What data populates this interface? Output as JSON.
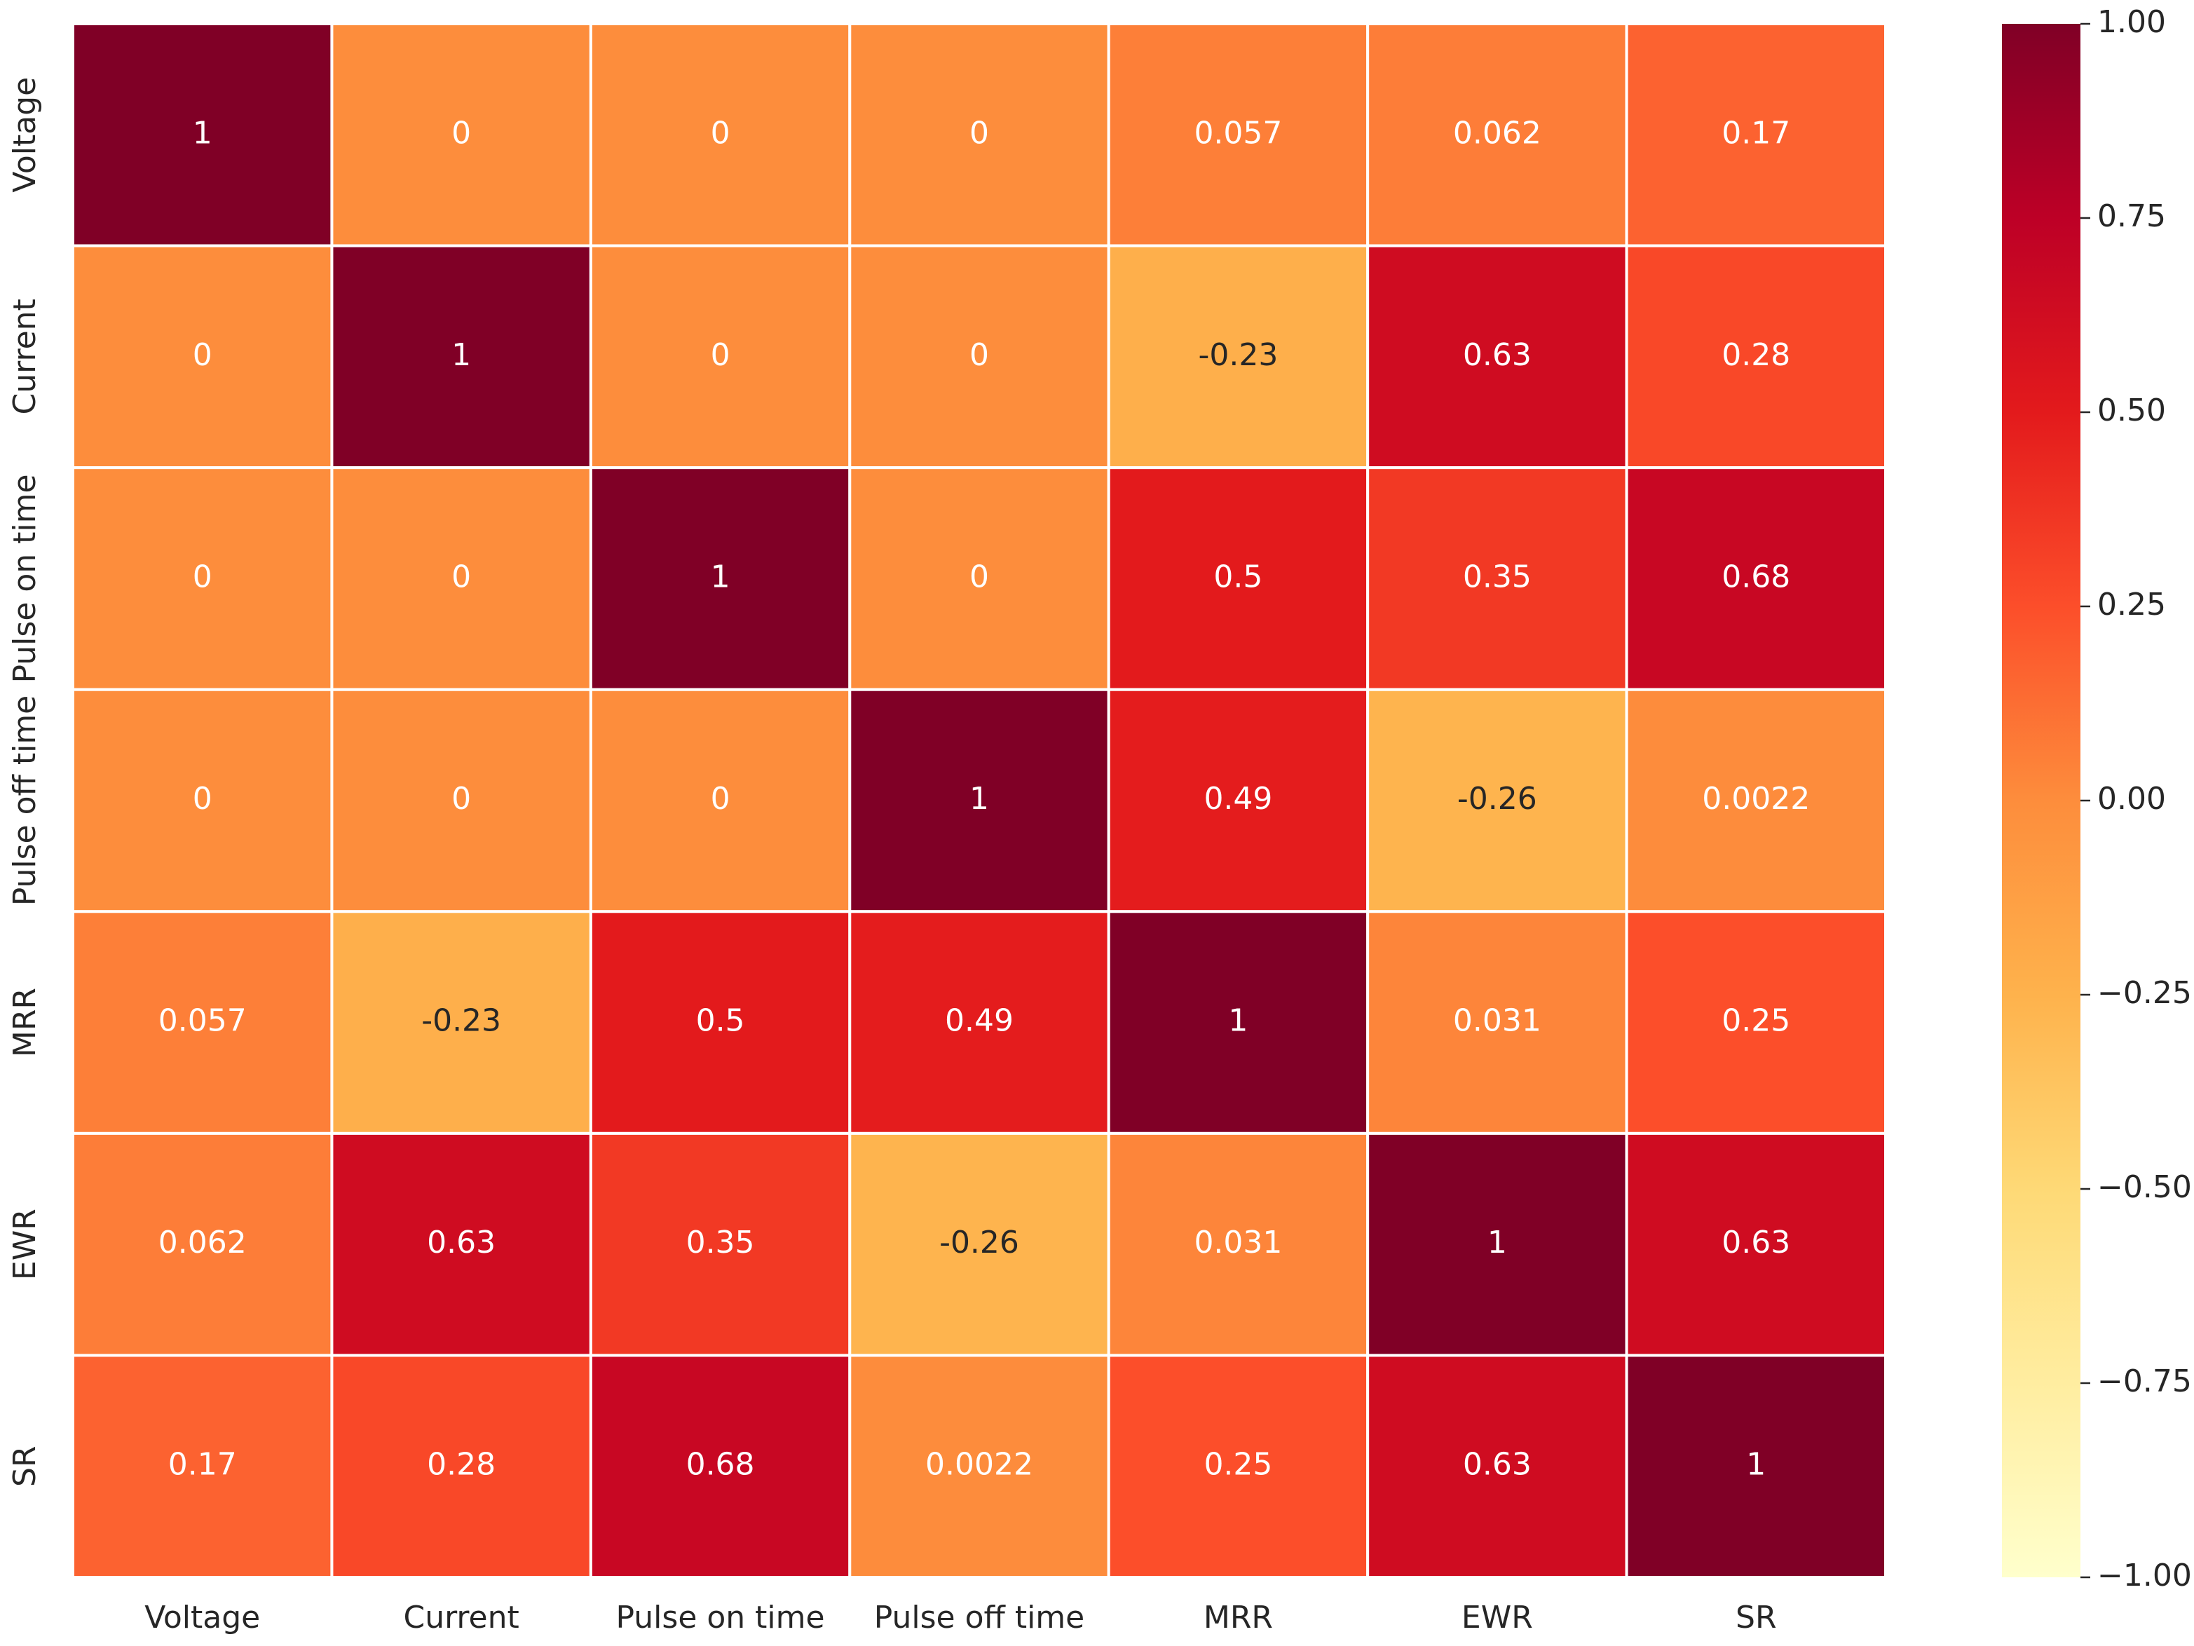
{
  "chart_data": {
    "type": "heatmap",
    "x_categories": [
      "Voltage",
      "Current",
      "Pulse on time",
      "Pulse off time",
      "MRR",
      "EWR",
      "SR"
    ],
    "y_categories": [
      "Voltage",
      "Current",
      "Pulse on time",
      "Pulse off time",
      "MRR",
      "EWR",
      "SR"
    ],
    "values": [
      [
        1,
        0,
        0,
        0,
        0.057,
        0.062,
        0.17
      ],
      [
        0,
        1,
        0,
        0,
        -0.23,
        0.63,
        0.28
      ],
      [
        0,
        0,
        1,
        0,
        0.5,
        0.35,
        0.68
      ],
      [
        0,
        0,
        0,
        1,
        0.49,
        -0.26,
        0.0022
      ],
      [
        0.057,
        -0.23,
        0.5,
        0.49,
        1,
        0.031,
        0.25
      ],
      [
        0.062,
        0.63,
        0.35,
        -0.26,
        0.031,
        1,
        0.63
      ],
      [
        0.17,
        0.28,
        0.68,
        0.0022,
        0.25,
        0.63,
        1
      ]
    ],
    "colormap": [
      "#ffffcc",
      "#ffeda0",
      "#fed976",
      "#feb24c",
      "#fd8d3c",
      "#fc4e2a",
      "#e31a1c",
      "#bd0026",
      "#800026"
    ],
    "clim": [
      -1,
      1
    ],
    "cticks": [
      {
        "value": 1,
        "label": "1.00"
      },
      {
        "value": 0.75,
        "label": "0.75"
      },
      {
        "value": 0.5,
        "label": "0.50"
      },
      {
        "value": 0.25,
        "label": "0.25"
      },
      {
        "value": 0,
        "label": "0.00"
      },
      {
        "value": -0.25,
        "label": "−0.25"
      },
      {
        "value": -0.5,
        "label": "−0.50"
      },
      {
        "value": -0.75,
        "label": "−0.75"
      },
      {
        "value": -1,
        "label": "−1.00"
      }
    ]
  }
}
